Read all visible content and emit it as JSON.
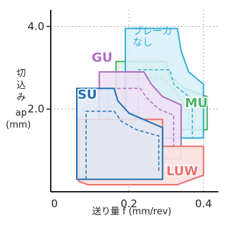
{
  "chart_data": {
    "type": "area",
    "xlabel": "送り量 f (mm/rev)",
    "ylabel_lines": [
      "切",
      "込",
      "み",
      "ap",
      "(mm)"
    ],
    "xlim": [
      -0.01,
      0.44
    ],
    "ylim": [
      0,
      4.4
    ],
    "x_ticks": [
      {
        "value": 0,
        "label": "0"
      },
      {
        "value": 0.2,
        "label": "0.2"
      },
      {
        "value": 0.4,
        "label": "0.4"
      }
    ],
    "y_ticks": [
      {
        "value": 2.0,
        "label": "2.0"
      },
      {
        "value": 4.0,
        "label": "4.0"
      }
    ],
    "grid": true,
    "series": [
      {
        "name": "LUW",
        "color": "#e8706e",
        "fill": "#fbe1df",
        "regions": {
          "solid": [
            [
              0.06,
              0.3
            ],
            [
              0.29,
              0.3
            ],
            [
              0.29,
              1.1
            ],
            [
              0.4,
              1.1
            ],
            [
              0.4,
              0.4
            ],
            [
              0.32,
              0.15
            ],
            [
              0.09,
              0.15
            ],
            [
              0.065,
              0.22
            ],
            [
              0.065,
              1.75
            ],
            [
              0.29,
              1.75
            ]
          ],
          "dashed_top": [
            [
              0.09,
              1.75
            ],
            [
              0.28,
              1.75
            ]
          ],
          "dashed_side": [
            [
              0.09,
              0.3
            ],
            [
              0.09,
              1.75
            ]
          ]
        },
        "label_pos": [
          0.3,
          0.4
        ]
      },
      {
        "name": "MU",
        "color": "#4db36a",
        "fill": "#dff0e1",
        "outline": [
          [
            0.165,
            1.5
          ],
          [
            0.165,
            3.15
          ],
          [
            0.3,
            3.15
          ],
          [
            0.3,
            3.15
          ],
          [
            0.31,
            2.8
          ],
          [
            0.35,
            2.5
          ],
          [
            0.41,
            2.3
          ],
          [
            0.41,
            1.5
          ]
        ],
        "inner_dashed": [
          [
            0.195,
            1.5
          ],
          [
            0.195,
            2.75
          ],
          [
            0.29,
            2.75
          ],
          [
            0.32,
            2.5
          ],
          [
            0.34,
            2.2
          ],
          [
            0.36,
            1.9
          ],
          [
            0.36,
            1.5
          ]
        ],
        "label_pos": [
          0.35,
          2.05
        ]
      },
      {
        "name": "ブレーカ\nなし",
        "color": "#31b0d5",
        "fill": "#d8f0f8",
        "outline": [
          [
            0.19,
            1.3
          ],
          [
            0.19,
            3.95
          ],
          [
            0.33,
            3.95
          ],
          [
            0.34,
            3.4
          ],
          [
            0.36,
            2.9
          ],
          [
            0.4,
            2.6
          ],
          [
            0.4,
            1.3
          ]
        ],
        "inner_dashed": [
          [
            0.225,
            1.3
          ],
          [
            0.225,
            2.95
          ],
          [
            0.31,
            2.95
          ],
          [
            0.32,
            2.6
          ],
          [
            0.36,
            2.3
          ],
          [
            0.37,
            2.0
          ],
          [
            0.37,
            1.3
          ]
        ],
        "label_lines": [
          "ブレーカ",
          "なし"
        ],
        "label_pos": [
          0.21,
          3.8
        ]
      },
      {
        "name": "GU",
        "color": "#b06ec0",
        "fill": "#efe0f3",
        "outline": [
          [
            0.12,
            0.8
          ],
          [
            0.12,
            2.9
          ],
          [
            0.24,
            2.9
          ],
          [
            0.26,
            2.6
          ],
          [
            0.29,
            2.3
          ],
          [
            0.34,
            2.1
          ],
          [
            0.34,
            0.8
          ]
        ],
        "inner_dashed": [
          [
            0.145,
            0.8
          ],
          [
            0.145,
            2.5
          ],
          [
            0.23,
            2.5
          ],
          [
            0.25,
            2.25
          ],
          [
            0.28,
            2.0
          ],
          [
            0.32,
            1.85
          ],
          [
            0.32,
            0.8
          ]
        ],
        "label_pos": [
          0.1,
          3.15
        ]
      },
      {
        "name": "SU",
        "color": "#1f6fb2",
        "fill": "#dfe8f5",
        "outline": [
          [
            0.06,
            0.3
          ],
          [
            0.06,
            2.5
          ],
          [
            0.16,
            2.5
          ],
          [
            0.17,
            2.2
          ],
          [
            0.2,
            1.9
          ],
          [
            0.29,
            1.55
          ],
          [
            0.29,
            0.3
          ]
        ],
        "inner_dashed": [
          [
            0.085,
            0.3
          ],
          [
            0.085,
            1.95
          ],
          [
            0.16,
            1.95
          ],
          [
            0.18,
            1.7
          ],
          [
            0.22,
            1.5
          ],
          [
            0.28,
            1.35
          ],
          [
            0.28,
            0.5
          ]
        ],
        "label_pos": [
          0.062,
          2.25
        ]
      }
    ]
  }
}
